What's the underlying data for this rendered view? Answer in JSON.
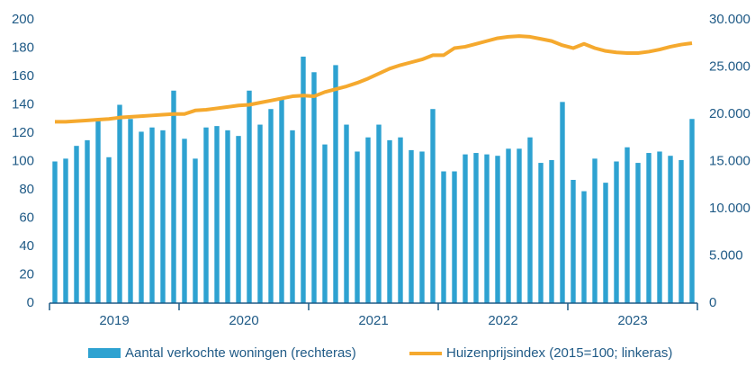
{
  "chart_data": {
    "type": "bar_line",
    "categories": [
      null,
      null,
      null,
      null,
      null,
      null,
      null,
      null,
      null,
      null,
      null,
      null,
      null,
      null,
      null,
      null,
      null,
      null,
      null,
      null,
      null,
      null,
      null,
      null,
      null,
      null,
      null,
      null,
      null,
      null,
      null,
      null,
      null,
      null,
      null,
      null,
      null,
      null,
      null,
      null,
      null,
      null,
      null,
      null,
      null,
      null,
      null,
      null,
      null,
      null,
      null,
      null,
      null,
      null,
      null,
      null,
      null,
      null,
      null,
      null
    ],
    "x_groups": [
      "2019",
      "2020",
      "2021",
      "2022",
      "2023"
    ],
    "series": [
      {
        "name": "Aantal verkochte woningen (rechteras)",
        "type": "bar",
        "axis": "y2",
        "color": "#2ea2d1",
        "values": [
          15000,
          15300,
          16650,
          17250,
          19500,
          15450,
          21000,
          19500,
          18150,
          18600,
          18300,
          22500,
          17400,
          15300,
          18600,
          18750,
          18300,
          17700,
          22500,
          18900,
          20550,
          21750,
          18300,
          26100,
          24450,
          16800,
          25200,
          18900,
          16050,
          17550,
          18900,
          17250,
          17550,
          16200,
          16050,
          20550,
          13950,
          13950,
          15750,
          15900,
          15750,
          15600,
          16350,
          16350,
          17550,
          14850,
          15150,
          21300,
          13050,
          11850,
          15300,
          12750,
          15000,
          16500,
          14850,
          15900,
          16050,
          15600,
          15150,
          19500
        ]
      },
      {
        "name": "Huizenprijsindex (2015=100; linkeras)",
        "type": "line",
        "axis": "y",
        "color": "#f5a92e",
        "values": [
          128,
          128,
          128.5,
          129,
          129.5,
          130,
          131,
          131.5,
          132,
          132.5,
          133,
          133.5,
          133.5,
          136,
          136.5,
          137.5,
          138.5,
          139.5,
          140,
          141.5,
          143,
          144.5,
          146,
          146.5,
          146,
          149,
          151,
          153,
          155.5,
          158.5,
          162,
          165.5,
          168,
          170,
          172,
          175,
          175,
          180,
          181,
          183,
          185,
          187,
          188,
          188.5,
          188,
          186.5,
          185,
          182,
          180,
          183,
          180,
          178,
          177,
          176.5,
          176.5,
          177.5,
          179,
          181,
          182.5,
          183.5
        ]
      }
    ],
    "ylim": [
      0,
      200
    ],
    "yticks": [
      0,
      20,
      40,
      60,
      80,
      100,
      120,
      140,
      160,
      180,
      200
    ],
    "y2lim": [
      0,
      30000
    ],
    "y2ticks": [
      {
        "value": 0,
        "label": "0"
      },
      {
        "value": 5000,
        "label": "5.000"
      },
      {
        "value": 10000,
        "label": "10.000"
      },
      {
        "value": 15000,
        "label": "15.000"
      },
      {
        "value": 20000,
        "label": "20.000"
      },
      {
        "value": 25000,
        "label": "25.000"
      },
      {
        "value": 30000,
        "label": "30.000"
      }
    ],
    "legend": "bottom"
  }
}
